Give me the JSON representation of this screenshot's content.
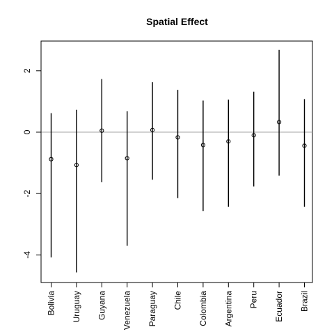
{
  "chart_data": {
    "type": "scatter",
    "title": "Spatial Effect",
    "xlabel": "",
    "ylabel": "",
    "categories": [
      "Bolivia",
      "Uruguay",
      "Guyana",
      "Venezuela",
      "Paraguay",
      "Chile",
      "Colombia",
      "Argentina",
      "Peru",
      "Ecuador",
      "Brazil"
    ],
    "series": [
      {
        "estimate": [
          -0.88,
          -1.07,
          0.05,
          -0.85,
          0.07,
          -0.17,
          -0.42,
          -0.3,
          -0.1,
          0.33,
          -0.44
        ],
        "lower": [
          -4.08,
          -4.57,
          -1.63,
          -3.7,
          -1.55,
          -2.15,
          -2.57,
          -2.43,
          -1.77,
          -1.42,
          -2.43
        ],
        "upper": [
          0.62,
          0.73,
          1.73,
          0.68,
          1.63,
          1.38,
          1.03,
          1.06,
          1.32,
          2.68,
          1.08
        ]
      }
    ],
    "reference_line": 0,
    "reference_line_color": "#a8a8a8",
    "yticks": [
      -4,
      -2,
      0,
      2
    ],
    "ylim": [
      -4.9,
      2.97
    ],
    "grid": false
  }
}
